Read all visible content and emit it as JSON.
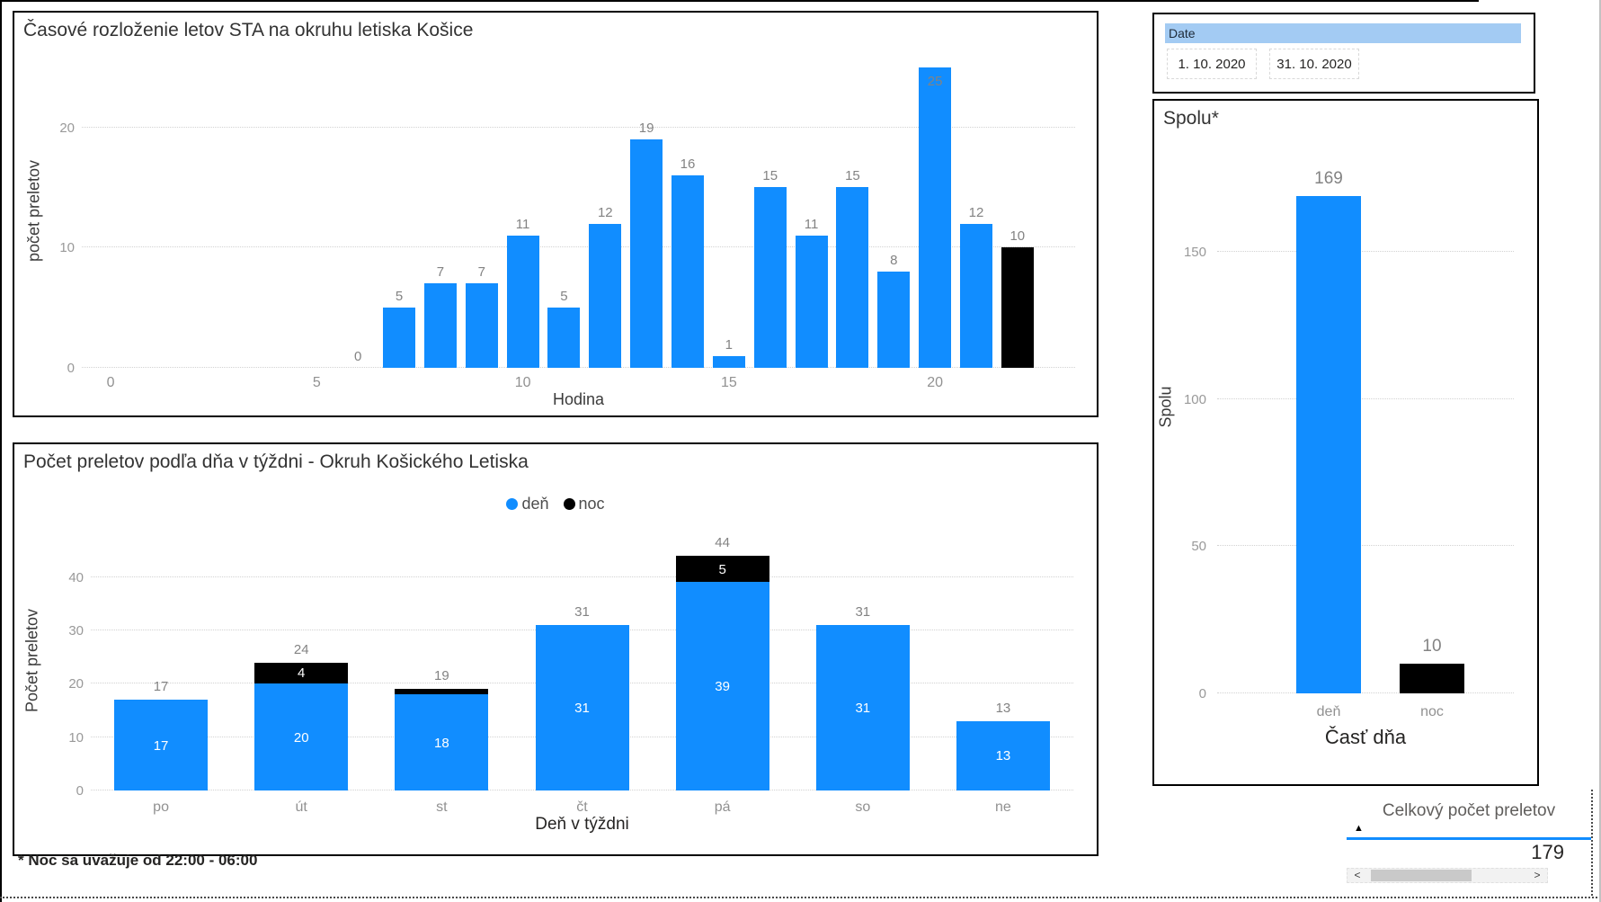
{
  "page": {
    "footnote": "* Noc sa uvažuje od 22:00 - 06:00"
  },
  "slicer": {
    "header": "Date",
    "start_date": "1. 10. 2020",
    "end_date": "31. 10. 2020"
  },
  "summary_table": {
    "header": "Celkový počet preletov",
    "sort_icon": "▲",
    "value": "179",
    "scroll_left": "<",
    "scroll_right": ">"
  },
  "colors": {
    "day": "#118DFF",
    "night": "#000000",
    "slicer_header_bg": "#A3CBF3",
    "accent_underline": "#118DFF"
  },
  "chart_data": [
    {
      "type": "bar",
      "title": "Časové rozloženie letov STA na okruhu letiska Košice",
      "xlabel": "Hodina",
      "ylabel": "počet preletov",
      "yticks": [
        0,
        10,
        20
      ],
      "xticks": [
        0,
        5,
        10,
        15,
        20
      ],
      "xlim": [
        -0.7,
        23.4
      ],
      "ylim": [
        0,
        25.8
      ],
      "x": [
        6,
        7,
        8,
        9,
        10,
        11,
        12,
        13,
        14,
        15,
        16,
        17,
        18,
        19,
        20,
        21,
        22
      ],
      "values": [
        0,
        5,
        7,
        7,
        11,
        5,
        12,
        19,
        16,
        1,
        15,
        11,
        15,
        8,
        25,
        12,
        10
      ],
      "night_hours": [
        22
      ],
      "grid": true,
      "legend_position": "none"
    },
    {
      "type": "stacked-bar",
      "title": "Počet preletov podľa dňa v týždni - Okruh Košického Letiska",
      "xlabel": "Deň v týždni",
      "ylabel": "Počet preletov",
      "yticks": [
        0,
        10,
        20,
        30,
        40
      ],
      "ylim": [
        0,
        48
      ],
      "categories": [
        "po",
        "út",
        "st",
        "čt",
        "pá",
        "so",
        "ne"
      ],
      "series": [
        {
          "name": "deň",
          "values": [
            17,
            20,
            18,
            31,
            39,
            31,
            13
          ]
        },
        {
          "name": "noc",
          "values": [
            0,
            4,
            1,
            0,
            5,
            0,
            0
          ]
        }
      ],
      "totals": [
        17,
        24,
        19,
        31,
        44,
        31,
        13
      ],
      "grid": true,
      "legend_position": "top"
    },
    {
      "type": "bar",
      "title": "Spolu*",
      "xlabel": "Časť dňa",
      "ylabel": "Spolu",
      "yticks": [
        0,
        50,
        100,
        150
      ],
      "ylim": [
        0,
        180
      ],
      "categories": [
        "deň",
        "noc"
      ],
      "values": [
        169,
        10
      ],
      "grid": true,
      "legend_position": "none"
    }
  ]
}
